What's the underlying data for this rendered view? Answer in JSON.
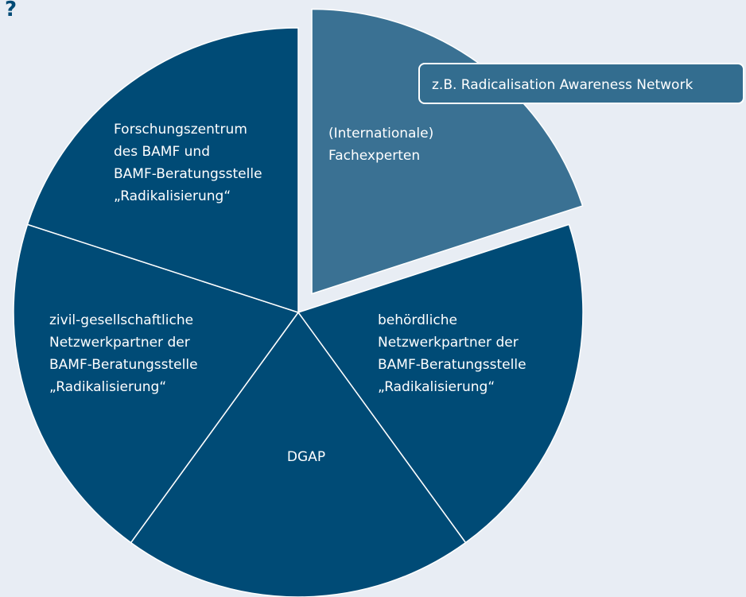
{
  "header": {
    "fragment": "?"
  },
  "segments": [
    {
      "lines": [
        "(Internationale)",
        "Fachexperten"
      ],
      "highlighted": true
    },
    {
      "lines": [
        "behördliche",
        "Netzwerkpartner der",
        "BAMF-Beratungsstelle",
        "„Radikalisierung“"
      ]
    },
    {
      "lines": [
        "DGAP"
      ]
    },
    {
      "lines": [
        "zivil-gesellschaftliche",
        "Netzwerkpartner der",
        "BAMF-Beratungsstelle",
        "„Radikalisierung“"
      ]
    },
    {
      "lines": [
        "Forschungszentrum",
        "des BAMF und",
        "BAMF-Beratungsstelle",
        "„Radikalisierung“"
      ]
    }
  ],
  "callout": {
    "text": "z.B. Radicalisation Awareness Network"
  }
}
